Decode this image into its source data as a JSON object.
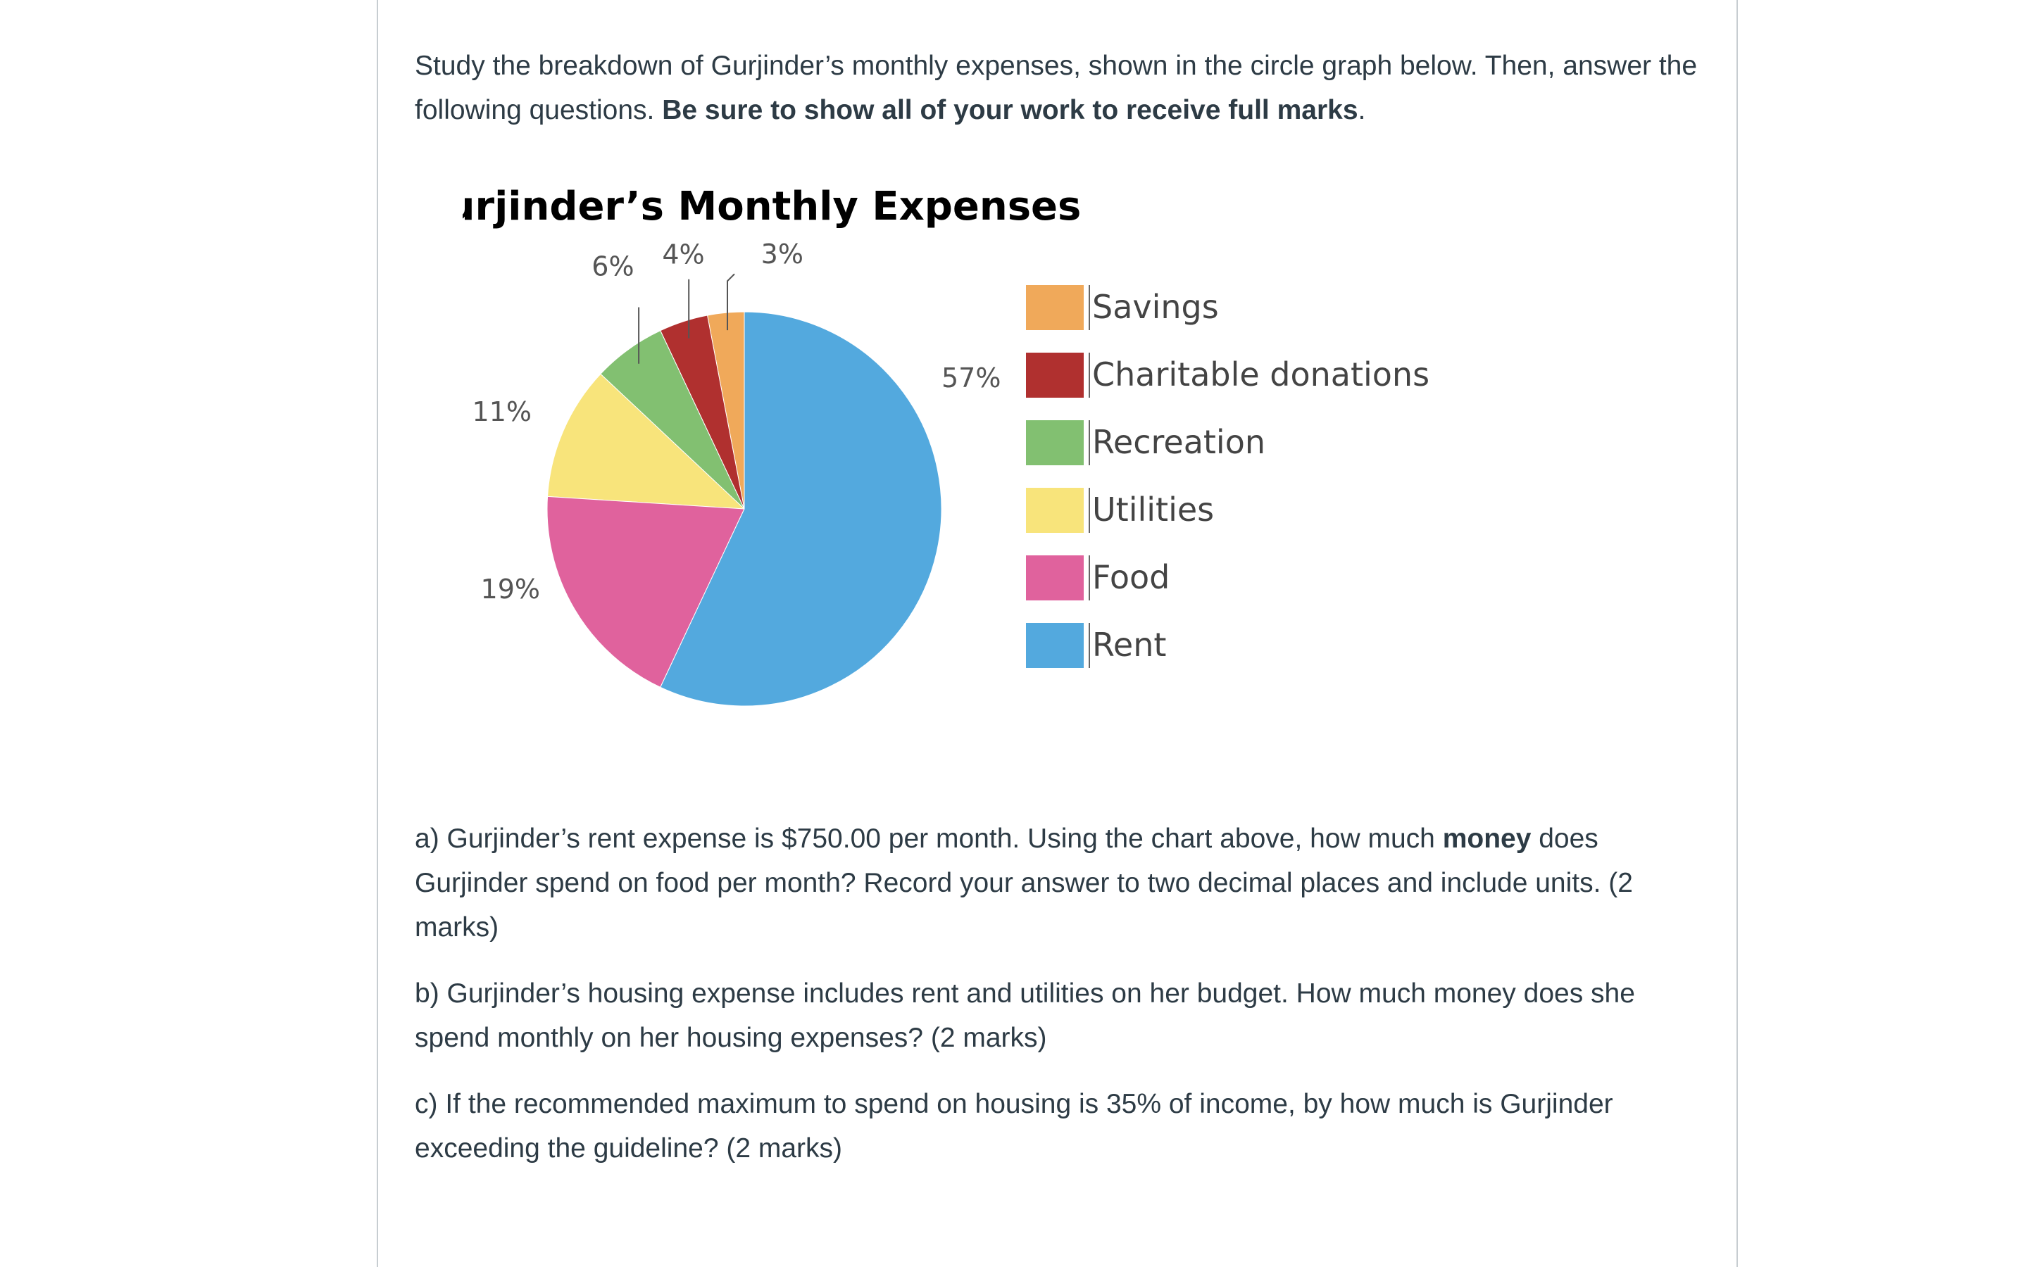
{
  "intro": {
    "text_plain": "Study the breakdown of Gurjinder’s monthly expenses, shown in the circle graph below. Then, answer the following questions. ",
    "text_bold": "Be sure to show all of your work to receive full marks",
    "text_end": "."
  },
  "chart_data": {
    "type": "pie",
    "title": "Gurjinder’s Monthly Expenses",
    "slices": [
      {
        "name": "Savings",
        "value": 3,
        "label": "3%",
        "color": "#f0a95a"
      },
      {
        "name": "Charitable donations",
        "value": 4,
        "label": "4%",
        "color": "#b0302f"
      },
      {
        "name": "Recreation",
        "value": 6,
        "label": "6%",
        "color": "#82c071"
      },
      {
        "name": "Utilities",
        "value": 11,
        "label": "11%",
        "color": "#f8e47b"
      },
      {
        "name": "Food",
        "value": 19,
        "label": "19%",
        "color": "#e0629d"
      },
      {
        "name": "Rent",
        "value": 57,
        "label": "57%",
        "color": "#53a9de"
      }
    ],
    "legend_position": "right"
  },
  "questions": {
    "a": {
      "pre": "a) Gurjinder’s rent expense is $750.00 per month. Using the chart above, how much ",
      "bold": "money",
      "post": " does Gurjinder spend on food per month? Record your answer to two decimal places and include units. (2 marks)"
    },
    "b": "b) Gurjinder’s housing expense includes rent and utilities on her budget. How much money does she spend monthly on her housing expenses? (2 marks)",
    "c": "c) If the recommended maximum to spend on housing is 35% of income, by how much is Gurjinder exceeding the guideline? (2 marks)"
  }
}
